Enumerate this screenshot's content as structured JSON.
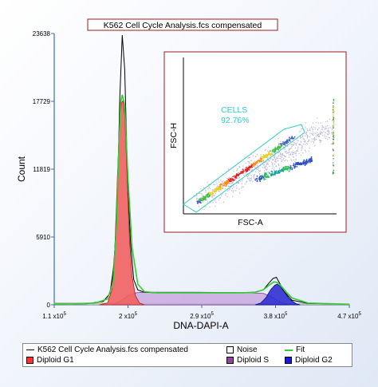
{
  "chart_data": [
    {
      "type": "area",
      "title": "K562 Cell Cycle Analysis.fcs compensated",
      "xlabel": "DNA-DAPI-A",
      "ylabel": "Count",
      "x_ticks": [
        {
          "value": 110000,
          "label": "1.1 x10",
          "exp": "5"
        },
        {
          "value": 200000,
          "label": "2 x10",
          "exp": "5"
        },
        {
          "value": 290000,
          "label": "2.9 x10",
          "exp": "5"
        },
        {
          "value": 380000,
          "label": "3.8 x10",
          "exp": "5"
        },
        {
          "value": 470000,
          "label": "4.7 x10",
          "exp": "5"
        }
      ],
      "y_ticks": [
        0,
        5910,
        11819,
        17729,
        23638
      ],
      "xlim": [
        110000,
        470000
      ],
      "ylim": [
        0,
        23638
      ],
      "grid": false,
      "legend_position": "bottom",
      "series": [
        {
          "name": "K562 Cell Cycle Analysis.fcs compensated",
          "style": "line",
          "color": "#000000",
          "x": [
            110000,
            150000,
            170000,
            178000,
            183000,
            187000,
            190000,
            193000,
            196000,
            199000,
            203000,
            207000,
            212000,
            220000,
            235000,
            260000,
            300000,
            340000,
            355000,
            365000,
            372000,
            377000,
            381000,
            385000,
            390000,
            400000,
            420000,
            470000
          ],
          "y": [
            50,
            100,
            300,
            1000,
            3500,
            9000,
            18000,
            23500,
            20500,
            12000,
            5500,
            2200,
            1300,
            1100,
            1050,
            1050,
            1050,
            1050,
            1100,
            1300,
            1900,
            2300,
            2400,
            1900,
            1200,
            400,
            120,
            50
          ]
        },
        {
          "name": "Noise",
          "style": "area",
          "color": "#d8d8d8",
          "x": [
            110000,
            200000,
            300000,
            400000,
            470000
          ],
          "y": [
            150,
            130,
            110,
            90,
            70
          ]
        },
        {
          "name": "Fit",
          "style": "line",
          "color": "#33cc33",
          "x": [
            110000,
            160000,
            175000,
            182000,
            186000,
            189000,
            191000,
            193000,
            196000,
            200000,
            205000,
            212000,
            220000,
            235000,
            260000,
            300000,
            340000,
            355000,
            365000,
            372000,
            378000,
            382000,
            386000,
            392000,
            400000,
            420000,
            470000
          ],
          "y": [
            50,
            150,
            500,
            2000,
            7000,
            14000,
            17600,
            18300,
            17400,
            11000,
            5000,
            1800,
            1150,
            1050,
            1050,
            1050,
            1050,
            1100,
            1300,
            1700,
            2000,
            1950,
            1700,
            1200,
            600,
            150,
            50
          ]
        },
        {
          "name": "Diploid G1",
          "style": "area",
          "color": "#f06060",
          "x": [
            165000,
            175000,
            180000,
            184000,
            187000,
            190000,
            192000,
            194000,
            196000,
            198000,
            200000,
            202000,
            205000,
            209000,
            214000,
            220000
          ],
          "y": [
            0,
            150,
            1200,
            5000,
            11000,
            16000,
            17600,
            17800,
            16500,
            13000,
            9000,
            5500,
            2500,
            800,
            150,
            0
          ]
        },
        {
          "name": "Diploid S",
          "style": "area",
          "color": "#c9a9e0",
          "x": [
            180000,
            190000,
            200000,
            210000,
            220000,
            240000,
            280000,
            320000,
            350000,
            365000,
            375000,
            385000,
            395000
          ],
          "y": [
            0,
            300,
            800,
            1050,
            1100,
            1100,
            1100,
            1080,
            1050,
            1000,
            700,
            250,
            0
          ]
        },
        {
          "name": "Diploid G2",
          "style": "area",
          "color": "#3030d0",
          "x": [
            355000,
            362000,
            368000,
            374000,
            379000,
            382000,
            386000,
            391000,
            397000,
            405000,
            410000
          ],
          "y": [
            0,
            150,
            600,
            1300,
            1700,
            1800,
            1600,
            1100,
            500,
            100,
            0
          ]
        }
      ]
    },
    {
      "type": "scatter",
      "xlabel": "FSC-A",
      "ylabel": "FSC-H",
      "annotation": {
        "label": "CELLS",
        "value": "92.76%"
      },
      "description": "density dot plot; points fall along diagonal band with red/orange core, gated by cyan polygon"
    }
  ],
  "legend": {
    "main": "K562 Cell Cycle Analysis.fcs compensated",
    "noise": "Noise",
    "fit": "Fit",
    "g1": "Diploid G1",
    "s": "Diploid S",
    "g2": "Diploid G2"
  },
  "colors": {
    "g1": "#f06060",
    "s": "#c9a9e0",
    "g2": "#3030d0",
    "noise": "#d8d8d8",
    "fit": "#33cc33",
    "gate": "#33cccc",
    "axis": "#3b6fb3",
    "title_border": "#9c1c1c"
  }
}
